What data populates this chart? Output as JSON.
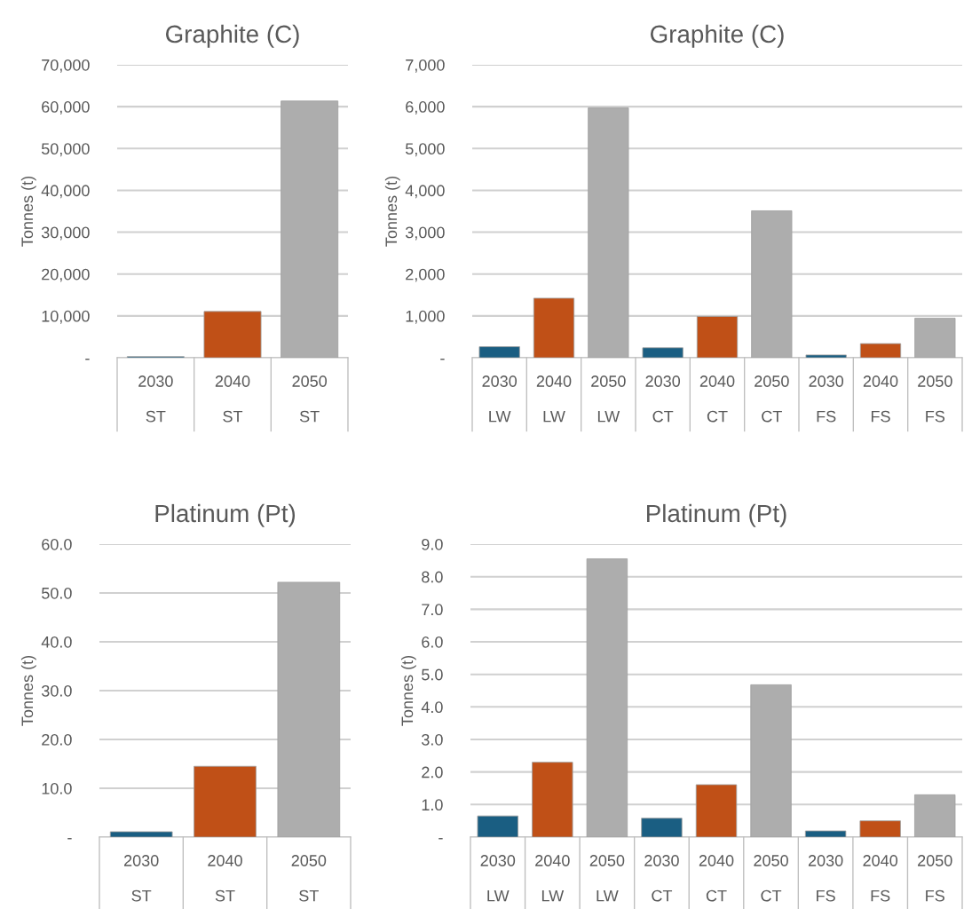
{
  "chart_data": [
    {
      "type": "bar",
      "title": "Graphite (C)",
      "ylabel": "Tonnes (t)",
      "categories": [
        "2030\nST",
        "2040\nST",
        "2050\nST"
      ],
      "values": [
        280,
        11060,
        61350
      ],
      "colors": [
        "#1a5e82",
        "#c05017",
        "#adadad"
      ],
      "ylim": [
        0,
        70000
      ],
      "yticks": [
        {
          "value": 0,
          "label": "-"
        },
        {
          "value": 10000,
          "label": "10,000"
        },
        {
          "value": 20000,
          "label": "20,000"
        },
        {
          "value": 30000,
          "label": "30,000"
        },
        {
          "value": 40000,
          "label": "40,000"
        },
        {
          "value": 50000,
          "label": "50,000"
        },
        {
          "value": 60000,
          "label": "60,000"
        },
        {
          "value": 70000,
          "label": "70,000"
        }
      ],
      "grid": "y"
    },
    {
      "type": "bar",
      "title": "Graphite (C)",
      "ylabel": "Tonnes (t)",
      "categories": [
        "2030\nLW",
        "2040\nLW",
        "2050\nLW",
        "2030\nCT",
        "2040\nCT",
        "2050\nCT",
        "2030\nFS",
        "2040\nFS",
        "2050\nFS"
      ],
      "values": [
        263,
        1423,
        5970,
        238,
        987,
        3511,
        66,
        337,
        946
      ],
      "colors": [
        "#1a5e82",
        "#c05017",
        "#adadad",
        "#1a5e82",
        "#c05017",
        "#adadad",
        "#1a5e82",
        "#c05017",
        "#adadad"
      ],
      "ylim": [
        0,
        7000
      ],
      "yticks": [
        {
          "value": 0,
          "label": "-"
        },
        {
          "value": 1000,
          "label": "1,000"
        },
        {
          "value": 2000,
          "label": "2,000"
        },
        {
          "value": 3000,
          "label": "3,000"
        },
        {
          "value": 4000,
          "label": "4,000"
        },
        {
          "value": 5000,
          "label": "5,000"
        },
        {
          "value": 6000,
          "label": "6,000"
        },
        {
          "value": 7000,
          "label": "7,000"
        }
      ],
      "grid": "y"
    },
    {
      "type": "bar",
      "title": "Platinum (Pt)",
      "ylabel": "Tonnes (t)",
      "categories": [
        "2030\nST",
        "2040\nST",
        "2050\nST"
      ],
      "values": [
        1.1,
        14.5,
        52.2
      ],
      "colors": [
        "#1a5e82",
        "#c05017",
        "#adadad"
      ],
      "ylim": [
        0,
        60
      ],
      "yticks": [
        {
          "value": 0,
          "label": "-"
        },
        {
          "value": 10,
          "label": "10.0"
        },
        {
          "value": 20,
          "label": "20.0"
        },
        {
          "value": 30,
          "label": "30.0"
        },
        {
          "value": 40,
          "label": "40.0"
        },
        {
          "value": 50,
          "label": "50.0"
        },
        {
          "value": 60,
          "label": "60.0"
        }
      ],
      "grid": "y"
    },
    {
      "type": "bar",
      "title": "Platinum (Pt)",
      "ylabel": "Tonnes (t)",
      "categories": [
        "2030\nLW",
        "2040\nLW",
        "2050\nLW",
        "2030\nCT",
        "2040\nCT",
        "2050\nCT",
        "2030\nFS",
        "2040\nFS",
        "2050\nFS"
      ],
      "values": [
        0.65,
        2.3,
        8.55,
        0.58,
        1.61,
        4.68,
        0.19,
        0.5,
        1.3
      ],
      "colors": [
        "#1a5e82",
        "#c05017",
        "#adadad",
        "#1a5e82",
        "#c05017",
        "#adadad",
        "#1a5e82",
        "#c05017",
        "#adadad"
      ],
      "ylim": [
        0,
        9
      ],
      "yticks": [
        {
          "value": 0,
          "label": "-"
        },
        {
          "value": 1,
          "label": "1.0"
        },
        {
          "value": 2,
          "label": "2.0"
        },
        {
          "value": 3,
          "label": "3.0"
        },
        {
          "value": 4,
          "label": "4.0"
        },
        {
          "value": 5,
          "label": "5.0"
        },
        {
          "value": 6,
          "label": "6.0"
        },
        {
          "value": 7,
          "label": "7.0"
        },
        {
          "value": 8,
          "label": "8.0"
        },
        {
          "value": 9,
          "label": "9.0"
        }
      ],
      "grid": "y"
    }
  ]
}
